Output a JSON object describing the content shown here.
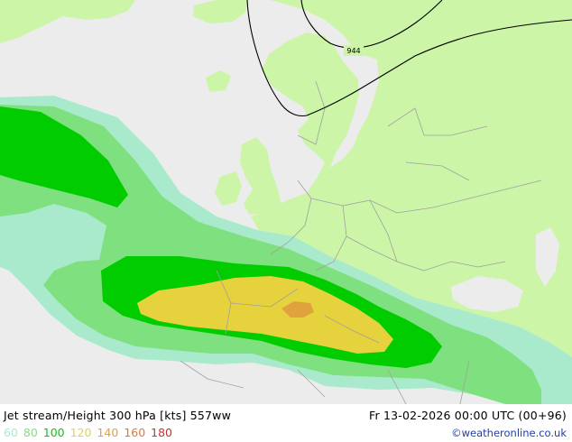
{
  "map": {
    "colors": {
      "sea": "#ececec",
      "land": "#ccf5a8",
      "band_60": "#aaeacc",
      "band_80": "#7fe07f",
      "band_100": "#00cc00",
      "band_120": "#e6d23c",
      "band_140": "#e0a23c",
      "contour": "#000000",
      "border": "#a0a0a0"
    },
    "contour_label": "944"
  },
  "footer": {
    "title": "Jet stream/Height 300 hPa [kts] 557ww",
    "datetime": "Fr 13-02-2026 00:00 UTC (00+96)",
    "credit": "©weatheronline.co.uk",
    "legend": [
      {
        "label": "60",
        "color": "#aaeacc"
      },
      {
        "label": "80",
        "color": "#7fe07f"
      },
      {
        "label": "100",
        "color": "#00cc00"
      },
      {
        "label": "120",
        "color": "#e6d23c"
      },
      {
        "label": "140",
        "color": "#e0a23c"
      },
      {
        "label": "160",
        "color": "#e07832"
      },
      {
        "label": "180",
        "color": "#c83232"
      }
    ]
  }
}
